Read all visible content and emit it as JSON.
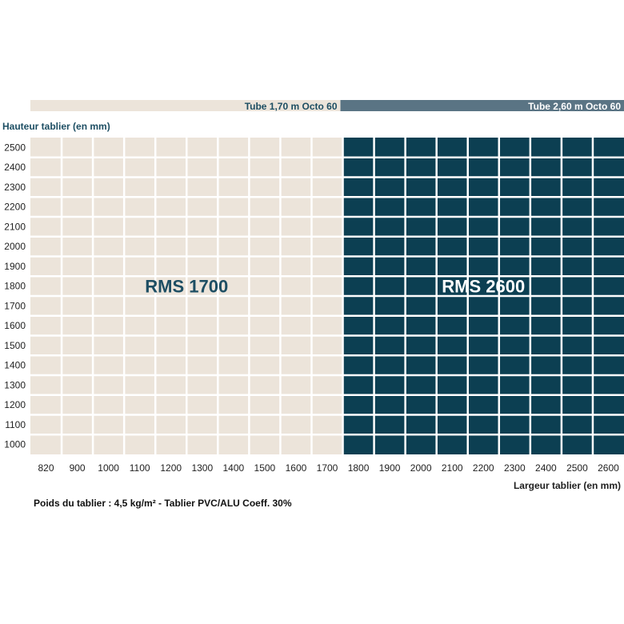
{
  "chart_data": {
    "type": "heatmap",
    "ylabel": "Hauteur tablier (en mm)",
    "xlabel": "Largeur tablier (en mm)",
    "x_ticks": [
      820,
      900,
      1000,
      1100,
      1200,
      1300,
      1400,
      1500,
      1600,
      1700,
      1800,
      1900,
      2000,
      2100,
      2200,
      2300,
      2400,
      2500,
      2600
    ],
    "y_ticks": [
      2500,
      2400,
      2300,
      2200,
      2100,
      2000,
      1900,
      1800,
      1700,
      1600,
      1500,
      1400,
      1300,
      1200,
      1100,
      1000
    ],
    "regions": [
      {
        "name": "RMS 1700",
        "tube": "Tube 1,70 m Octo 60",
        "x_range": [
          820,
          1700
        ],
        "y_range": [
          1000,
          2500
        ],
        "fill": "#ece4da",
        "label_color": "#1d4e63",
        "tube_bar_color": "#ece4da",
        "tube_text_color": "#1d4e63"
      },
      {
        "name": "RMS 2600",
        "tube": "Tube 2,60 m Octo 60",
        "x_range": [
          1800,
          2600
        ],
        "y_range": [
          1000,
          2500
        ],
        "fill": "#0c3f52",
        "label_color": "#ffffff",
        "tube_bar_color": "#5a7484",
        "tube_text_color": "#ffffff"
      }
    ],
    "grid": true,
    "footnote": "Poids du tablier : 4,5 kg/m²  -  Tablier PVC/ALU Coeff. 30%"
  },
  "colors": {
    "grid_line": "#ffffff",
    "tick_text": "#1f1f1f",
    "ylabel_text": "#1d4e63"
  }
}
